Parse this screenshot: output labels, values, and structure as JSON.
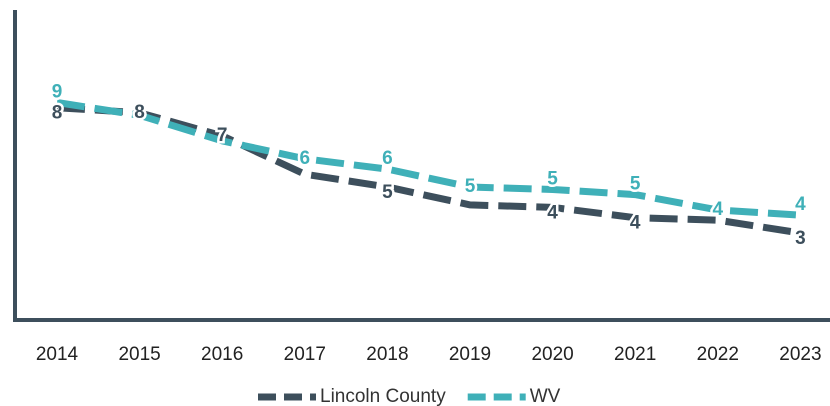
{
  "chart_data": {
    "type": "line",
    "categories": [
      "2014",
      "2015",
      "2016",
      "2017",
      "2018",
      "2019",
      "2020",
      "2021",
      "2022",
      "2023"
    ],
    "series": [
      {
        "name": "Lincoln County",
        "color": "#3d4f5c",
        "values": [
          8.3,
          8.1,
          7.2,
          5.7,
          5.2,
          4.5,
          4.4,
          4.0,
          3.9,
          3.4
        ],
        "value_labels": [
          "8",
          "8",
          "7",
          null,
          "5",
          null,
          "4",
          "4",
          null,
          "3"
        ]
      },
      {
        "name": "WV",
        "color": "#3fb0b8",
        "values": [
          8.5,
          8.0,
          7.0,
          6.3,
          5.9,
          5.2,
          5.1,
          4.9,
          4.3,
          4.1
        ],
        "value_labels": [
          "9",
          null,
          null,
          "6",
          "6",
          "5",
          "5",
          "5",
          "4",
          "4"
        ]
      }
    ],
    "ylim": [
      0,
      12
    ],
    "legend": "bottom"
  }
}
